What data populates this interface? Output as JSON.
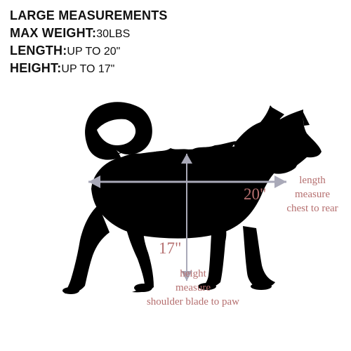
{
  "specs": {
    "size": {
      "label": "LARGE  MEASUREMENTS",
      "value": ""
    },
    "max_weight": {
      "label": "MAX  WEIGHT:",
      "value": "30LBS"
    },
    "length": {
      "label": "LENGTH:",
      "value": "UP TO 20\""
    },
    "height": {
      "label": "HEIGHT:",
      "value": "UP TO 17\""
    }
  },
  "figure": {
    "silhouette": "dog-silhouette",
    "length_arrow_icon": "double-headed-arrow",
    "height_arrow_icon": "down-arrow",
    "length_value": "20\"",
    "height_value": "17\"",
    "length_note": [
      "length",
      "measure",
      "chest to rear"
    ],
    "height_note": [
      "height",
      "measure",
      "shoulder blade to paw"
    ]
  },
  "colors": {
    "text": "#111111",
    "silhouette": "#000000",
    "annotation": "#b56f6f",
    "arrows": "#a9a9b8"
  }
}
